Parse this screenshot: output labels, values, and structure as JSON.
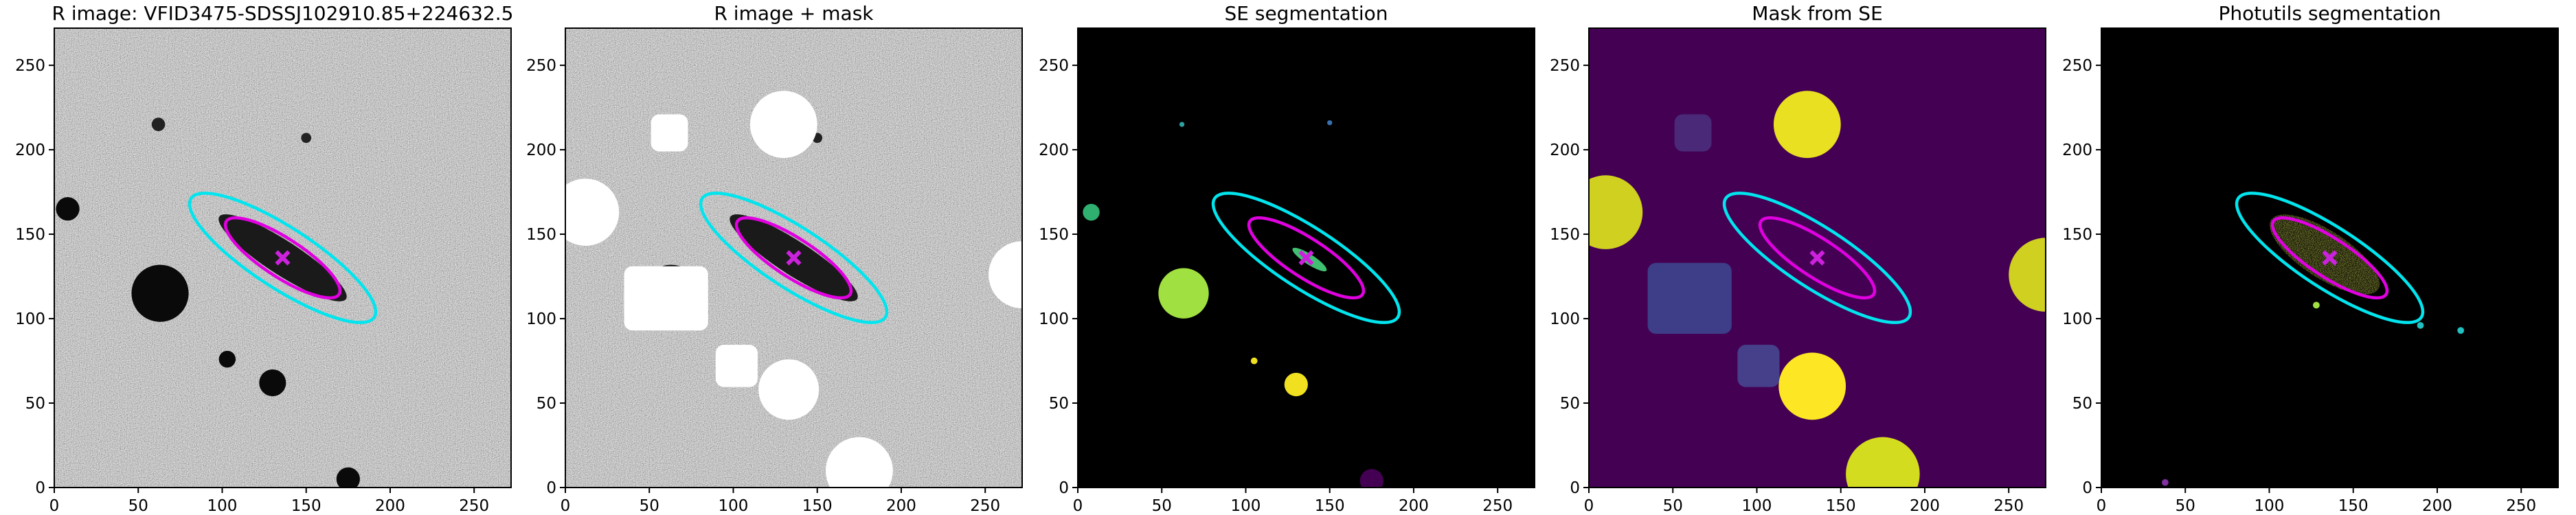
{
  "chart_data": [
    {
      "type": "image",
      "title": "R image: VFID3475-SDSSJ102910.85+224632.5",
      "xlim": [
        0,
        272
      ],
      "ylim": [
        0,
        272
      ],
      "xticks": [
        0,
        50,
        100,
        150,
        200,
        250
      ],
      "yticks": [
        0,
        50,
        100,
        150,
        200,
        250
      ],
      "ellipses": [
        {
          "x": 136,
          "y": 136,
          "width": 130,
          "height": 36,
          "angle": -33,
          "color": "#00e5ee"
        },
        {
          "x": 136,
          "y": 136,
          "width": 80,
          "height": 23,
          "angle": -33,
          "color": "#e000e0"
        }
      ],
      "marker": {
        "x": 136,
        "y": 136,
        "color": "#cc22dd"
      }
    },
    {
      "type": "image",
      "title": "R image + mask",
      "xlim": [
        0,
        272
      ],
      "ylim": [
        0,
        272
      ],
      "xticks": [
        0,
        50,
        100,
        150,
        200,
        250
      ],
      "yticks": [
        0,
        50,
        100,
        150,
        200,
        250
      ],
      "ellipses": [
        {
          "x": 136,
          "y": 136,
          "width": 130,
          "height": 36,
          "angle": -33,
          "color": "#00e5ee"
        },
        {
          "x": 136,
          "y": 136,
          "width": 80,
          "height": 23,
          "angle": -33,
          "color": "#e000e0"
        }
      ],
      "marker": {
        "x": 136,
        "y": 136,
        "color": "#cc22dd"
      }
    },
    {
      "type": "image",
      "title": "SE segmentation",
      "xlim": [
        0,
        272
      ],
      "ylim": [
        0,
        272
      ],
      "xticks": [
        0,
        50,
        100,
        150,
        200,
        250
      ],
      "yticks": [
        0,
        50,
        100,
        150,
        200,
        250
      ],
      "ellipses": [
        {
          "x": 136,
          "y": 136,
          "width": 130,
          "height": 36,
          "angle": -33,
          "color": "#00e5ee"
        },
        {
          "x": 136,
          "y": 136,
          "width": 80,
          "height": 23,
          "angle": -33,
          "color": "#e000e0"
        }
      ],
      "marker": {
        "x": 136,
        "y": 136,
        "color": "#cc22dd"
      }
    },
    {
      "type": "image",
      "title": "Mask from SE",
      "xlim": [
        0,
        272
      ],
      "ylim": [
        0,
        272
      ],
      "xticks": [
        0,
        50,
        100,
        150,
        200,
        250
      ],
      "yticks": [
        0,
        50,
        100,
        150,
        200,
        250
      ],
      "ellipses": [
        {
          "x": 136,
          "y": 136,
          "width": 130,
          "height": 36,
          "angle": -33,
          "color": "#00e5ee"
        },
        {
          "x": 136,
          "y": 136,
          "width": 80,
          "height": 23,
          "angle": -33,
          "color": "#e000e0"
        }
      ],
      "marker": {
        "x": 136,
        "y": 136,
        "color": "#cc22dd"
      }
    },
    {
      "type": "image",
      "title": "Photutils segmentation",
      "xlim": [
        0,
        272
      ],
      "ylim": [
        0,
        272
      ],
      "xticks": [
        0,
        50,
        100,
        150,
        200,
        250
      ],
      "yticks": [
        0,
        50,
        100,
        150,
        200,
        250
      ],
      "ellipses": [
        {
          "x": 136,
          "y": 136,
          "width": 130,
          "height": 36,
          "angle": -33,
          "color": "#00e5ee"
        },
        {
          "x": 136,
          "y": 136,
          "width": 80,
          "height": 23,
          "angle": -33,
          "color": "#e000e0"
        }
      ],
      "marker": {
        "x": 136,
        "y": 136,
        "color": "#cc22dd"
      }
    }
  ]
}
